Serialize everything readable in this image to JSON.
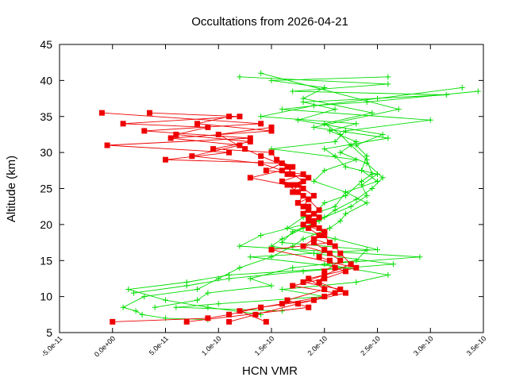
{
  "chart_data": {
    "type": "line",
    "title": "Occultations from 2026-04-21",
    "xlabel": "HCN VMR",
    "ylabel": "Altitude (km)",
    "xlim": [
      -5e-11,
      3.5e-10
    ],
    "ylim": [
      5,
      45
    ],
    "x_ticks": [
      {
        "value": -5e-11,
        "label": "-5.0e-11"
      },
      {
        "value": 0,
        "label": "0.0e+00"
      },
      {
        "value": 5e-11,
        "label": "5.0e-11"
      },
      {
        "value": 1e-10,
        "label": "1.0e-10"
      },
      {
        "value": 1.5e-10,
        "label": "1.5e-10"
      },
      {
        "value": 2e-10,
        "label": "2.0e-10"
      },
      {
        "value": 2.5e-10,
        "label": "2.5e-10"
      },
      {
        "value": 3e-10,
        "label": "3.0e-10"
      },
      {
        "value": 3.5e-10,
        "label": "3.5e-10"
      }
    ],
    "y_ticks": [
      {
        "value": 5,
        "label": "5"
      },
      {
        "value": 10,
        "label": "10"
      },
      {
        "value": 15,
        "label": "15"
      },
      {
        "value": 20,
        "label": "20"
      },
      {
        "value": 25,
        "label": "25"
      },
      {
        "value": 30,
        "label": "30"
      },
      {
        "value": 35,
        "label": "35"
      },
      {
        "value": 40,
        "label": "40"
      },
      {
        "value": 45,
        "label": "45"
      }
    ],
    "grid": false,
    "legend": "none",
    "series": [
      {
        "color": "#00dd00",
        "marker": "plus",
        "x": [
          3.3e-10,
          2.5e-10,
          1.6e-10,
          3e-10,
          2.2e-10,
          2.1e-10,
          1.5e-10,
          2.3e-10,
          2e-10,
          1.9e-10,
          2.2e-10,
          2.4e-10,
          2.2e-10,
          2.15e-10,
          2.05e-10,
          1.8e-10,
          1.7e-10,
          1.5e-10,
          1.2e-10,
          1e-10,
          8e-11,
          3e-11,
          1e-11,
          2.2e-11,
          2.8e-11,
          5e-11,
          9e-11
        ],
        "y": [
          39.0,
          37.5,
          36.0,
          34.5,
          33.0,
          31.5,
          30.5,
          29.0,
          27.5,
          26.0,
          24.5,
          23.0,
          21.5,
          20.5,
          19.5,
          18.0,
          17.0,
          15.5,
          14.0,
          12.5,
          11.0,
          10.0,
          8.5,
          8.0,
          7.5,
          7.0,
          6.8
        ]
      },
      {
        "color": "#00dd00",
        "marker": "plus",
        "x": [
          1.2e-10,
          2.6e-10,
          1.7e-10,
          3.15e-10,
          1.8e-10,
          2.1e-10,
          1.75e-10,
          2.55e-10,
          2.3e-10,
          2.4e-10,
          2.35e-10,
          2.5e-10,
          2.2e-10,
          2.1e-10,
          1.8e-10,
          1.65e-10,
          2.1e-10,
          2.5e-10,
          1.3e-10,
          2.2e-10,
          1.1e-10,
          7e-11,
          1.5e-11,
          5e-11,
          9e-11,
          1.4e-10
        ],
        "y": [
          40.5,
          39.5,
          38.5,
          38.0,
          37.0,
          36.0,
          34.5,
          32.5,
          31.0,
          29.5,
          27.5,
          26.0,
          24.5,
          22.5,
          21.0,
          19.5,
          18.0,
          16.5,
          15.5,
          14.0,
          13.0,
          12.0,
          11.0,
          9.5,
          8.5,
          7.5
        ]
      },
      {
        "color": "#00dd00",
        "marker": "plus",
        "x": [
          2.6e-10,
          1.5e-10,
          2e-10,
          1.8e-10,
          2.45e-10,
          2e-10,
          2.15e-10,
          2.25e-10,
          2.4e-10,
          2.45e-10,
          2.35e-10,
          2.2e-10,
          2e-10,
          1.9e-10,
          1.8e-10,
          1.4e-10,
          1.2e-10,
          2.9e-10,
          2e-10,
          2.6e-10,
          2.3e-10,
          1.6e-10,
          2e-10,
          1e-10,
          6e-11,
          1.6e-10
        ],
        "y": [
          40.5,
          40.0,
          39.0,
          37.5,
          35.5,
          34.0,
          32.5,
          31.0,
          29.0,
          27.0,
          26.0,
          24.0,
          23.0,
          21.5,
          20.0,
          18.5,
          17.0,
          15.5,
          14.5,
          13.0,
          12.0,
          11.0,
          10.0,
          9.0,
          8.5,
          8.0
        ]
      },
      {
        "color": "#00dd00",
        "marker": "plus",
        "x": [
          3.45e-10,
          2.4e-10,
          1.9e-10,
          1.4e-10,
          2.3e-10,
          2.05e-10,
          2.3e-10,
          2.15e-10,
          2.4e-10,
          2.55e-10,
          2.45e-10,
          2.3e-10,
          2.1e-10,
          1.95e-10,
          1.7e-10,
          1.6e-10,
          2.4e-10,
          2.3e-10,
          1.7e-10,
          1.3e-10,
          1.5e-10,
          9e-11,
          8e-11,
          4e-11
        ],
        "y": [
          38.5,
          37.0,
          36.5,
          35.0,
          34.0,
          33.0,
          31.5,
          30.0,
          28.5,
          26.5,
          25.0,
          23.5,
          22.0,
          20.5,
          19.0,
          17.5,
          16.5,
          15.0,
          14.0,
          12.5,
          11.5,
          10.5,
          9.5,
          8.5
        ]
      },
      {
        "color": "#00dd00",
        "marker": "plus",
        "x": [
          1.4e-10,
          2.7e-10,
          1.9e-10,
          2.6e-10,
          2e-10,
          2.1e-10,
          2.2e-10,
          2.5e-10,
          2.35e-10,
          2.4e-10,
          2.25e-10,
          2e-10,
          1.8e-10,
          1.6e-10,
          1.5e-10,
          1.9e-10,
          2.65e-10,
          1.8e-10,
          1.1e-10,
          7e-11,
          2e-11
        ],
        "y": [
          41.0,
          36.0,
          33.5,
          32.0,
          30.5,
          29.5,
          28.0,
          27.0,
          25.5,
          24.0,
          22.5,
          21.0,
          19.5,
          18.0,
          17.0,
          16.0,
          14.5,
          13.5,
          12.5,
          11.5,
          10.5
        ]
      },
      {
        "color": "#ee0000",
        "marker": "square",
        "x": [
          -1e-11,
          1.4e-10,
          3e-11,
          1.3e-10,
          -5e-12,
          1.1e-10,
          5e-11,
          1.6e-10,
          1.45e-10,
          1.8e-10,
          1.6e-10,
          1.75e-10,
          1.7e-10,
          1.8e-10,
          1.75e-10,
          1.85e-10,
          1.8e-10,
          1.9e-10,
          1.85e-10,
          1.95e-10,
          1.9e-10,
          2e-10,
          1.95e-10,
          2.05e-10,
          2.1e-10,
          2.2e-10,
          2e-10,
          1.7e-10,
          2.1e-10,
          1.9e-10,
          1.4e-10,
          1.1e-10,
          9e-11,
          0.0
        ],
        "y": [
          35.5,
          34.0,
          33.0,
          32.0,
          31.0,
          30.0,
          29.0,
          28.5,
          27.5,
          27.0,
          26.0,
          25.5,
          24.5,
          24.0,
          23.0,
          22.5,
          21.5,
          20.5,
          19.5,
          18.5,
          17.5,
          16.5,
          15.5,
          15.0,
          14.0,
          13.5,
          12.5,
          11.5,
          10.5,
          9.5,
          8.5,
          7.5,
          7.0,
          6.5
        ]
      },
      {
        "color": "#ee0000",
        "marker": "square",
        "x": [
          3.5e-11,
          1.2e-10,
          1e-11,
          9e-11,
          6e-11,
          1.3e-10,
          9.5e-11,
          1.5e-10,
          1.55e-10,
          1.7e-10,
          1.65e-10,
          1.85e-10,
          1.7e-10,
          1.8e-10,
          1.9e-10,
          1.75e-10,
          1.85e-10,
          1.95e-10,
          1.8e-10,
          2e-10,
          1.9e-10,
          2.1e-10,
          2.15e-10,
          2.25e-10,
          2e-10,
          1.8e-10,
          2.15e-10,
          2e-10,
          1.6e-10,
          1.2e-10,
          1.45e-10
        ],
        "y": [
          35.5,
          35.0,
          34.0,
          33.5,
          32.5,
          31.5,
          30.5,
          30.0,
          29.0,
          28.0,
          27.0,
          26.5,
          25.5,
          25.0,
          24.0,
          23.0,
          22.0,
          21.0,
          20.0,
          19.0,
          18.0,
          17.0,
          16.0,
          14.5,
          13.0,
          12.0,
          11.0,
          10.0,
          9.0,
          8.0,
          6.5
        ]
      },
      {
        "color": "#ee0000",
        "marker": "square",
        "x": [
          1.1e-10,
          8e-11,
          1.5e-10,
          5.5e-11,
          1.2e-10,
          7.5e-11,
          1.4e-10,
          1.6e-10,
          1.3e-10,
          1.65e-10,
          1.75e-10,
          1.85e-10,
          1.8e-10,
          1.9e-10,
          1.85e-10,
          1.95e-10,
          2e-10,
          2.05e-10,
          1.5e-10,
          2.3e-10,
          1.85e-10,
          2e-10,
          1.65e-10,
          1.85e-10,
          7e-11
        ],
        "y": [
          35.0,
          34.0,
          33.0,
          32.0,
          31.0,
          29.5,
          28.5,
          27.5,
          26.5,
          25.5,
          24.5,
          23.5,
          22.5,
          21.5,
          20.5,
          19.5,
          18.5,
          17.5,
          16.5,
          14.0,
          12.5,
          11.0,
          9.5,
          8.5,
          6.5
        ]
      },
      {
        "color": "#ee0000",
        "marker": "square",
        "x": [
          1.5e-10,
          1e-10,
          1.25e-10,
          1.4e-10,
          1.65e-10,
          1.7e-10,
          1.8e-10,
          1.75e-10,
          1.85e-10,
          1.95e-10,
          1.85e-10,
          1.9e-10,
          2e-10,
          1.8e-10,
          2.05e-10,
          2.15e-10,
          2e-10,
          1.95e-10,
          2.2e-10,
          1.75e-10,
          1.35e-10,
          1.1e-10
        ],
        "y": [
          33.5,
          32.5,
          30.5,
          29.5,
          28.0,
          27.0,
          26.0,
          24.5,
          23.5,
          22.0,
          21.0,
          20.0,
          19.0,
          17.0,
          16.0,
          15.0,
          13.5,
          12.0,
          10.5,
          9.0,
          7.5,
          6.5
        ]
      }
    ]
  }
}
